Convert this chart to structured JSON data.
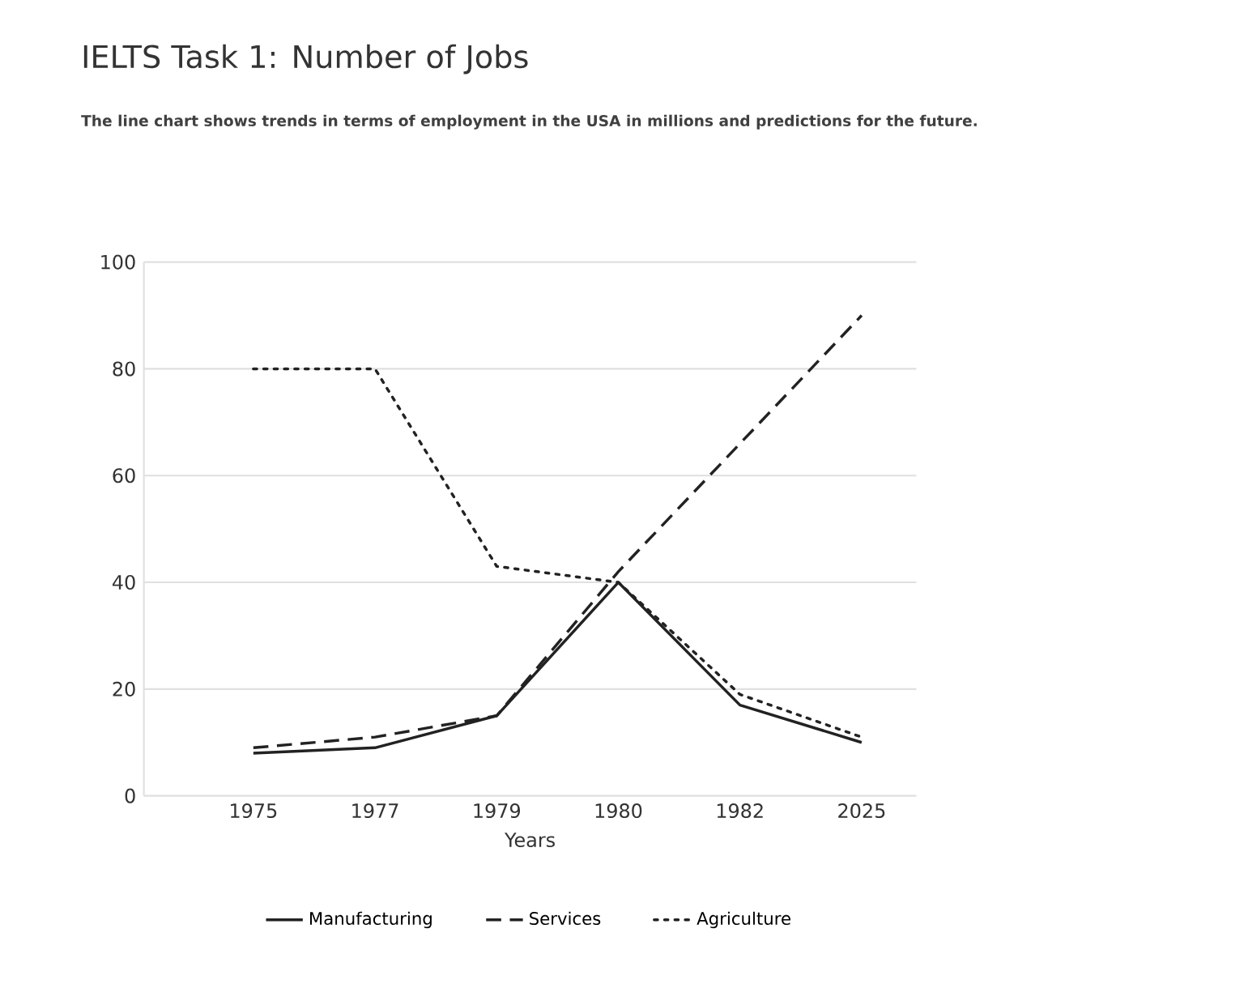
{
  "chart_data": {
    "type": "line",
    "title": "IELTS Task 1: Number of Jobs",
    "subtitle": "The line chart shows trends in terms of employment in the USA in millions and predictions for the future.",
    "xlabel": "Years",
    "categories": [
      "1975",
      "1977",
      "1979",
      "1980",
      "1982",
      "2025"
    ],
    "series": [
      {
        "name": "Manufacturing",
        "color": "#222222",
        "line_style": "solid",
        "values": [
          8,
          9,
          15,
          40,
          17,
          10
        ]
      },
      {
        "name": "Services",
        "color": "#222222",
        "line_style": "dashed",
        "values": [
          9,
          11,
          15,
          42,
          66,
          90
        ]
      },
      {
        "name": "Agriculture",
        "color": "#222222",
        "line_style": "dotted",
        "values": [
          80,
          80,
          43,
          40,
          19,
          11
        ]
      }
    ],
    "ylim": [
      0,
      100
    ],
    "yticks": [
      0,
      20,
      40,
      60,
      80,
      100
    ],
    "grid": "y",
    "legend": "bottom",
    "marker": "none"
  }
}
